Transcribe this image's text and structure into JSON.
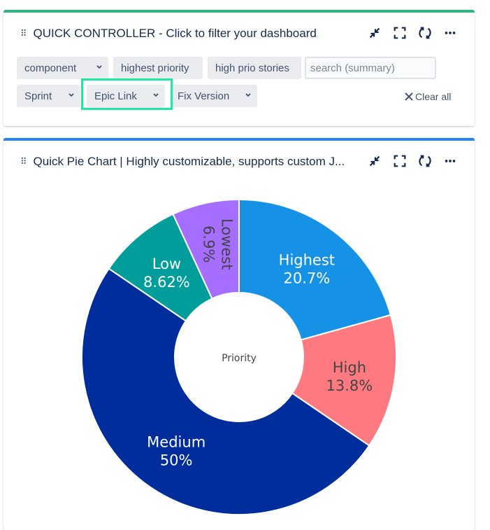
{
  "controller": {
    "title": "QUICK CONTROLLER - Click to filter your dashboard",
    "filters": [
      {
        "label": "component",
        "dropdown": true
      },
      {
        "label": "highest priority",
        "dropdown": false
      },
      {
        "label": "high prio stories",
        "dropdown": false
      },
      {
        "label": "Sprint",
        "dropdown": true
      },
      {
        "label": "Epic Link",
        "dropdown": true,
        "highlighted": true
      },
      {
        "label": "Fix Version",
        "dropdown": true
      }
    ],
    "search_placeholder": "search (summary)",
    "clear_all": "Clear all"
  },
  "pie_gadget": {
    "title": "Quick Pie Chart | Highly customizable, supports custom J..."
  },
  "icons": [
    "drag-handle-icon",
    "minimize-icon",
    "fullscreen-icon",
    "refresh-icon",
    "more-icon",
    "chevron-down-icon",
    "close-icon"
  ],
  "chart_data": {
    "type": "pie",
    "donut": true,
    "center_label": "Priority",
    "categories": [
      "Highest",
      "High",
      "Medium",
      "Low",
      "Lowest"
    ],
    "values": [
      20.7,
      13.8,
      50,
      8.62,
      6.9
    ],
    "labels": [
      "20.7%",
      "13.8%",
      "50%",
      "8.62%",
      "6.9%"
    ],
    "colors": [
      "#1592e6",
      "#ff7a80",
      "#002d9c",
      "#009d9a",
      "#a56eff"
    ],
    "text_colors": [
      "#ffffff",
      "#444444",
      "#ffffff",
      "#ffffff",
      "#444444"
    ],
    "start": "top",
    "direction": "clockwise"
  }
}
